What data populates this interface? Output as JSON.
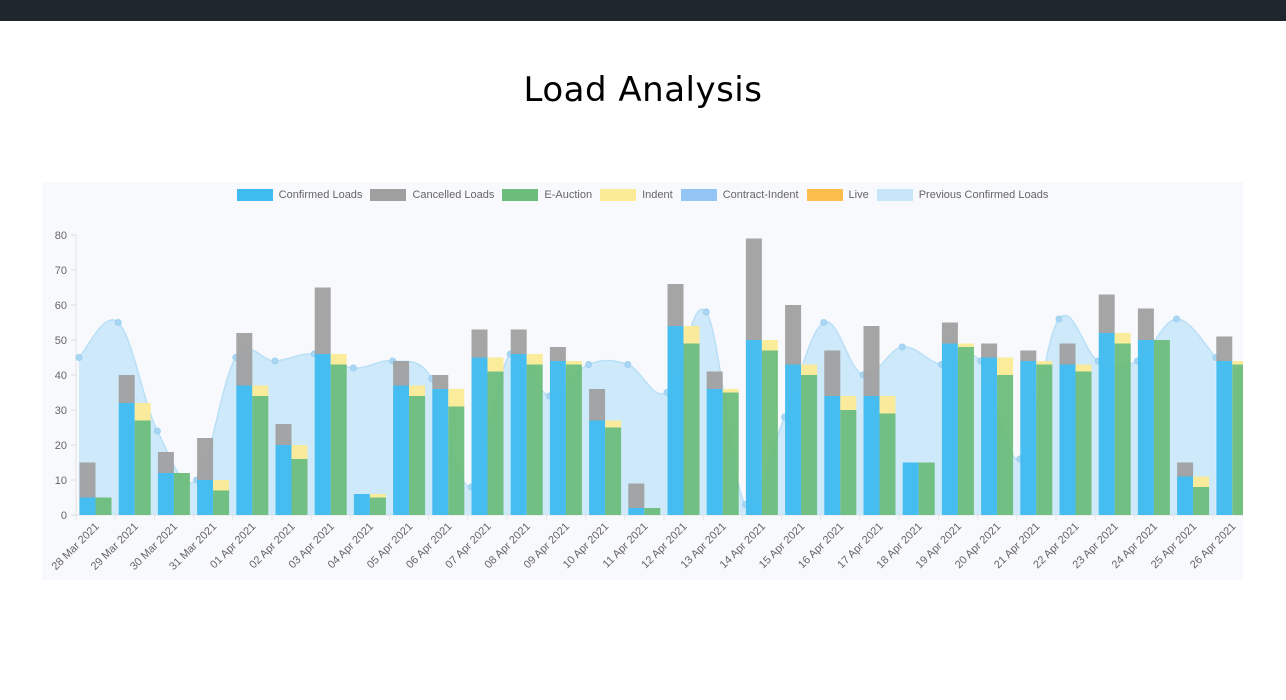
{
  "header": {
    "title": "Load Analysis"
  },
  "colors": {
    "topbar": "#1f262e",
    "confirmed": "#3ebbef",
    "cancelled": "#a0a0a0",
    "eauction": "#6cbd7b",
    "indent": "#fbeb96",
    "contract_indent": "#93c5f5",
    "live": "#fbbd4c",
    "previous": "#c7e6f9"
  },
  "chart_data": {
    "type": "bar",
    "title": "",
    "xlabel": "",
    "ylabel": "",
    "ylim": [
      0,
      80
    ],
    "yticks": [
      "0",
      "10",
      "20",
      "30",
      "40",
      "50",
      "60",
      "70",
      "80"
    ],
    "legend_position": "top",
    "categories": [
      "28 Mar 2021",
      "29 Mar 2021",
      "30 Mar 2021",
      "31 Mar 2021",
      "01 Apr 2021",
      "02 Apr 2021",
      "03 Apr 2021",
      "04 Apr 2021",
      "05 Apr 2021",
      "06 Apr 2021",
      "07 Apr 2021",
      "08 Apr 2021",
      "09 Apr 2021",
      "10 Apr 2021",
      "11 Apr 2021",
      "12 Apr 2021",
      "13 Apr 2021",
      "14 Apr 2021",
      "15 Apr 2021",
      "16 Apr 2021",
      "17 Apr 2021",
      "18 Apr 2021",
      "19 Apr 2021",
      "20 Apr 2021",
      "21 Apr 2021",
      "22 Apr 2021",
      "23 Apr 2021",
      "24 Apr 2021",
      "25 Apr 2021",
      "26 Apr 2021"
    ],
    "series": [
      {
        "name": "Confirmed Loads",
        "stack": "a",
        "values": [
          5,
          32,
          12,
          10,
          37,
          20,
          46,
          6,
          37,
          36,
          45,
          46,
          44,
          27,
          2,
          54,
          36,
          50,
          43,
          34,
          34,
          15,
          49,
          45,
          44,
          43,
          52,
          50,
          11,
          44
        ]
      },
      {
        "name": "Cancelled Loads",
        "stack": "a",
        "values": [
          10,
          8,
          6,
          12,
          15,
          6,
          19,
          0,
          7,
          4,
          8,
          7,
          4,
          9,
          7,
          12,
          5,
          29,
          17,
          13,
          20,
          0,
          6,
          4,
          3,
          6,
          11,
          9,
          4,
          7
        ]
      },
      {
        "name": "E-Auction",
        "stack": "b",
        "values": [
          5,
          27,
          12,
          7,
          34,
          16,
          43,
          5,
          34,
          31,
          41,
          43,
          43,
          25,
          2,
          49,
          35,
          47,
          40,
          30,
          29,
          15,
          48,
          40,
          43,
          41,
          49,
          50,
          8,
          43
        ]
      },
      {
        "name": "Indent",
        "stack": "b",
        "values": [
          0,
          5,
          0,
          3,
          3,
          4,
          3,
          1,
          3,
          5,
          4,
          3,
          1,
          2,
          0,
          5,
          1,
          3,
          3,
          4,
          5,
          0,
          1,
          5,
          1,
          2,
          3,
          0,
          3,
          1
        ]
      },
      {
        "name": "Contract-Indent",
        "stack": "b",
        "values": [
          0,
          0,
          0,
          0,
          0,
          0,
          0,
          0,
          0,
          0,
          0,
          0,
          0,
          0,
          0,
          0,
          0,
          0,
          0,
          0,
          0,
          0,
          0,
          0,
          0,
          0,
          0,
          0,
          0,
          0
        ]
      },
      {
        "name": "Live",
        "stack": "b",
        "values": [
          0,
          0,
          0,
          0,
          0,
          0,
          0,
          0,
          0,
          0,
          0,
          0,
          0,
          0,
          0,
          0,
          0,
          0,
          0,
          0,
          0,
          0,
          0,
          0,
          0,
          0,
          0,
          0,
          0,
          0
        ]
      },
      {
        "name": "Previous Confirmed Loads",
        "type": "area",
        "values": [
          45,
          55,
          24,
          10,
          45,
          44,
          46,
          42,
          44,
          39,
          8,
          46,
          34,
          43,
          43,
          35,
          58,
          3,
          28,
          55,
          40,
          48,
          43,
          44,
          16,
          56,
          44,
          44,
          56,
          45
        ]
      }
    ]
  }
}
